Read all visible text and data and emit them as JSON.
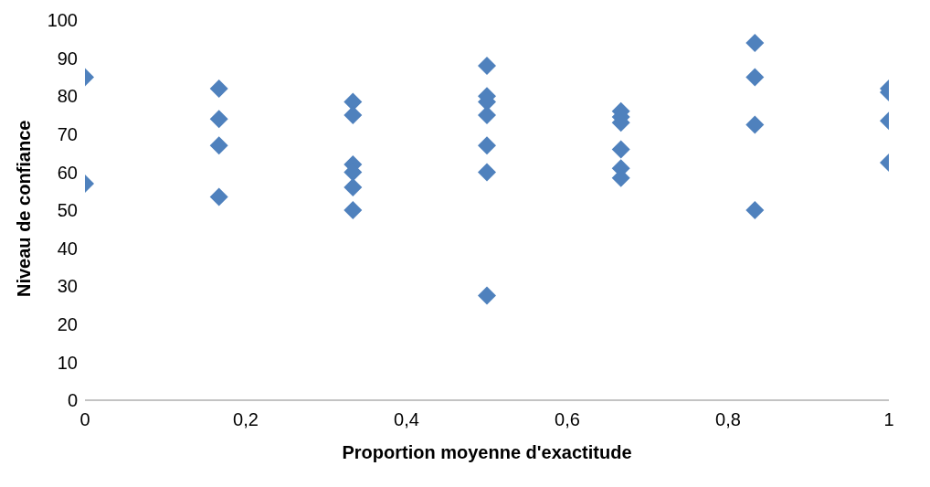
{
  "chart_data": {
    "type": "scatter",
    "xlabel": "Proportion moyenne d'exactitude",
    "ylabel": "Niveau de confiance",
    "x": [
      0,
      0,
      0.1667,
      0.1667,
      0.1667,
      0.1667,
      0.3333,
      0.3333,
      0.3333,
      0.3333,
      0.3333,
      0.3333,
      0.5,
      0.5,
      0.5,
      0.5,
      0.5,
      0.5,
      0.5,
      0.6667,
      0.6667,
      0.6667,
      0.6667,
      0.6667,
      0.6667,
      0.8333,
      0.8333,
      0.8333,
      0.8333,
      1,
      1,
      1,
      1
    ],
    "values": [
      85,
      57,
      82,
      74,
      67,
      53.5,
      78.5,
      75,
      62,
      60,
      56,
      50,
      88,
      80,
      78.5,
      75,
      67,
      60,
      27.5,
      76,
      74.5,
      73,
      66,
      61,
      58.5,
      94,
      85,
      72.5,
      50,
      82,
      81,
      73.5,
      62.5
    ],
    "color": "#4f81bd",
    "marker": "diamond",
    "xlim": [
      0,
      1
    ],
    "xticks": [
      0,
      {
        "value": 0.2,
        "label": "0,2"
      },
      {
        "value": 0.4,
        "label": "0,4"
      },
      {
        "value": 0.6,
        "label": "0,6"
      },
      {
        "value": 0.8,
        "label": "0,8"
      },
      1
    ],
    "ylim": [
      0,
      100
    ],
    "yticks": [
      0,
      10,
      20,
      30,
      40,
      50,
      60,
      70,
      80,
      90,
      100
    ],
    "grid": false,
    "legend": false
  }
}
